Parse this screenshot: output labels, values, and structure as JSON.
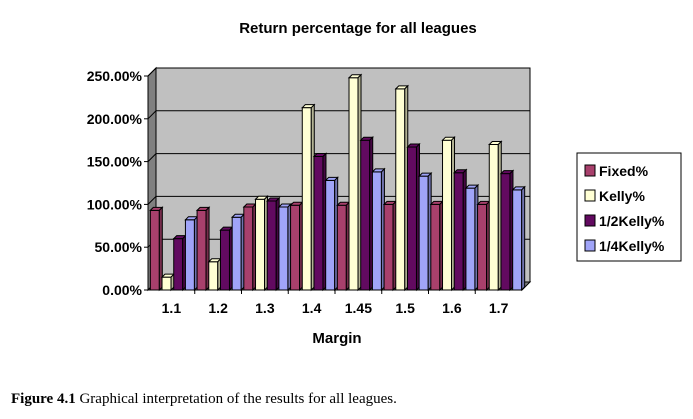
{
  "chart_data": {
    "type": "bar",
    "title": "Return percentage for all leagues",
    "xlabel": "Margin",
    "ylabel": "",
    "categories": [
      "1.1",
      "1.2",
      "1.3",
      "1.4",
      "1.45",
      "1.5",
      "1.6",
      "1.7"
    ],
    "series": [
      {
        "name": "Fixed%",
        "values": [
          93,
          93,
          97,
          99,
          99,
          100,
          100,
          100
        ]
      },
      {
        "name": "Kelly%",
        "values": [
          15,
          33,
          106,
          213,
          248,
          235,
          175,
          170
        ]
      },
      {
        "name": "1/2Kelly%",
        "values": [
          60,
          70,
          104,
          156,
          175,
          167,
          137,
          136
        ]
      },
      {
        "name": "1/4Kelly%",
        "values": [
          82,
          85,
          97,
          128,
          138,
          133,
          119,
          117
        ]
      }
    ],
    "ylim": [
      0,
      250
    ],
    "yticks": [
      "0.00%",
      "50.00%",
      "100.00%",
      "150.00%",
      "200.00%",
      "250.00%"
    ],
    "grid": true,
    "legend_position": "right",
    "colors": {
      "Fixed%": "#a8406c",
      "Kelly%": "#ffffd4",
      "1/2Kelly%": "#620a60",
      "1/4Kelly%": "#a0a4f8"
    }
  },
  "caption": {
    "label": "Figure 4.1",
    "text": " Graphical interpretation of the results for all leagues."
  }
}
